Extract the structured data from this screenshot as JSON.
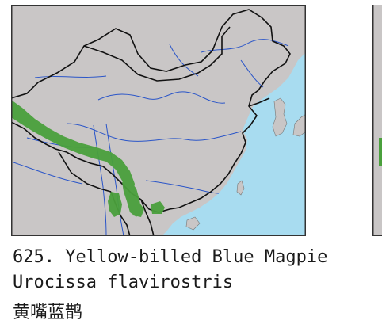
{
  "map": {
    "sea_color": "#a8dcf0",
    "land_color": "#c9c6c6",
    "range_color": "#4aa03c",
    "border_color": "#111111",
    "river_color": "#2a55c8"
  },
  "caption": {
    "number_name": "625. Yellow-billed Blue Magpie",
    "latin_name": "Urocissa flavirostris",
    "chinese_name": "黄嘴蓝鹊"
  }
}
